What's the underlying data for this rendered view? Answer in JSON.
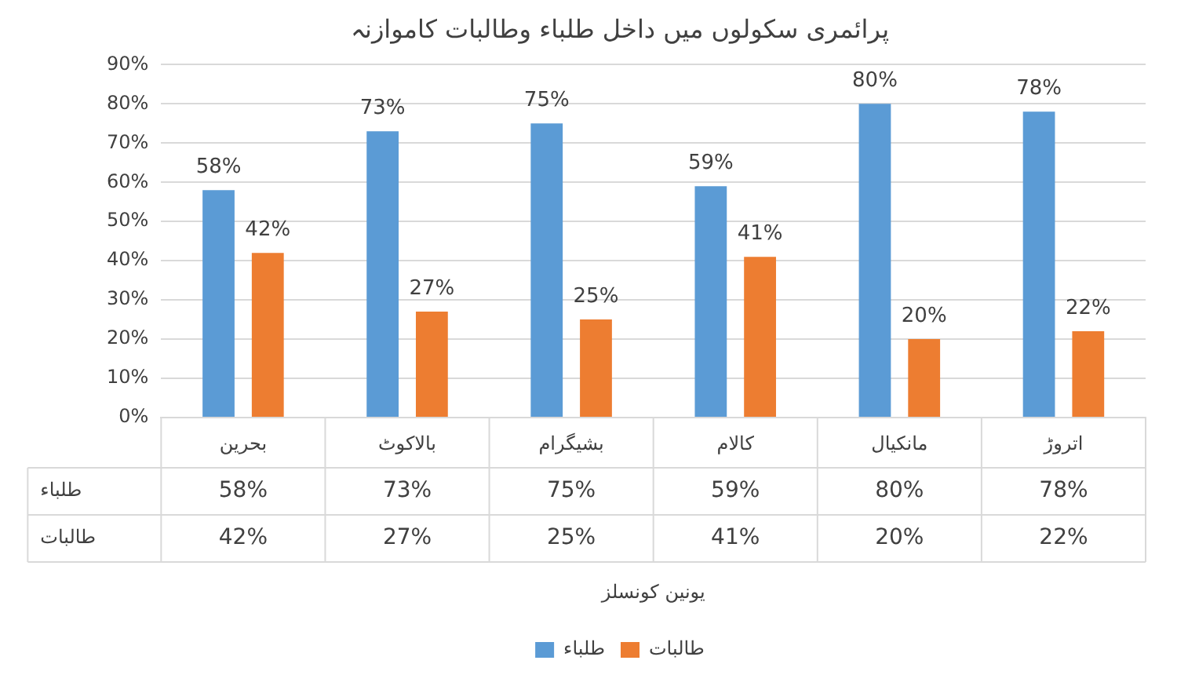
{
  "chart_data": {
    "type": "bar",
    "title": "پرائمری سکولوں میں داخل طلباء وطالبات کاموازنہ",
    "annotations": [
      "یونین کونسلز"
    ],
    "categories": [
      "بحرین",
      "بالاکوٹ",
      "بشیگرام",
      "کالام",
      "مانکیال",
      "اتروڑ"
    ],
    "series": [
      {
        "name": "طلباء",
        "color": "#5b9bd5",
        "values": [
          58,
          73,
          75,
          59,
          80,
          78
        ],
        "value_labels": [
          "58%",
          "73%",
          "75%",
          "59%",
          "80%",
          "78%"
        ]
      },
      {
        "name": "طالبات",
        "color": "#ed7d31",
        "values": [
          42,
          27,
          25,
          41,
          20,
          22
        ],
        "value_labels": [
          "42%",
          "27%",
          "25%",
          "41%",
          "20%",
          "22%"
        ]
      }
    ],
    "ylim": [
      0,
      90
    ],
    "yticks": [
      {
        "value": 0,
        "label": "0%"
      },
      {
        "value": 10,
        "label": "10%"
      },
      {
        "value": 20,
        "label": "20%"
      },
      {
        "value": 30,
        "label": "30%"
      },
      {
        "value": 40,
        "label": "40%"
      },
      {
        "value": 50,
        "label": "50%"
      },
      {
        "value": 60,
        "label": "60%"
      },
      {
        "value": 70,
        "label": "70%"
      },
      {
        "value": 80,
        "label": "80%"
      },
      {
        "value": 90,
        "label": "90%"
      }
    ],
    "grid": "y",
    "legend": "bottom"
  }
}
